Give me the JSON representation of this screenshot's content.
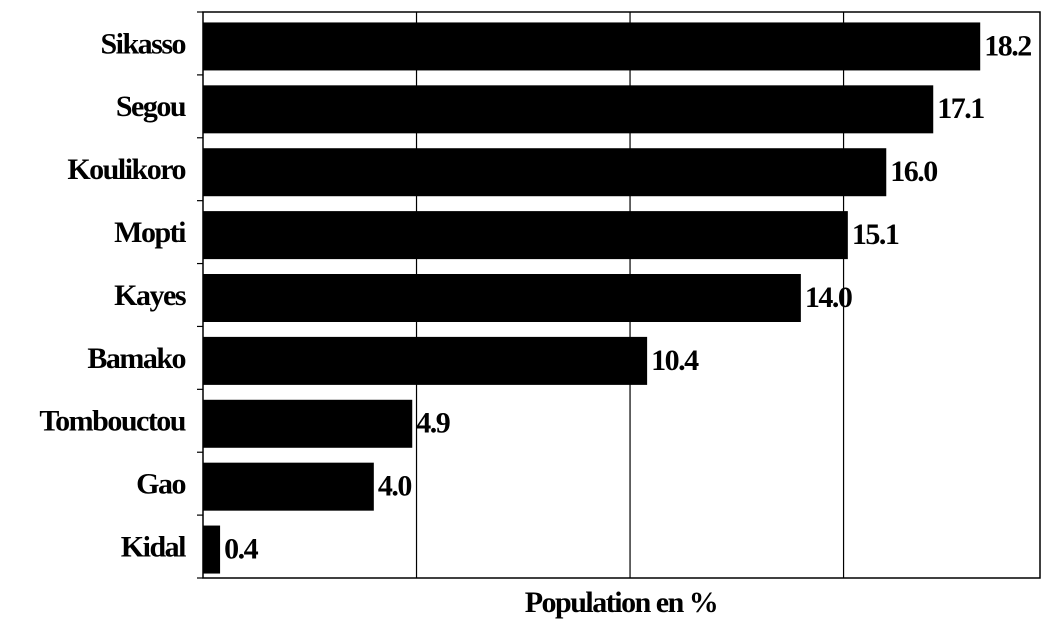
{
  "chart_data": {
    "type": "barh",
    "categories": [
      "Sikasso",
      "Segou",
      "Koulikoro",
      "Mopti",
      "Kayes",
      "Bamako",
      "Tombouctou",
      "Gao",
      "Kidal"
    ],
    "values": [
      18.2,
      17.1,
      16.0,
      15.1,
      14.0,
      10.4,
      4.9,
      4.0,
      0.4
    ],
    "value_labels": [
      "18.2",
      "17.1",
      "16.0",
      "15.1",
      "14.0",
      "10.4",
      "4.9",
      "4.0",
      "0.4"
    ],
    "color": "#000000",
    "x_label": "Population en %",
    "xlim": [
      0,
      19.6
    ],
    "xticks": [
      5,
      10,
      15
    ],
    "grid": true
  }
}
